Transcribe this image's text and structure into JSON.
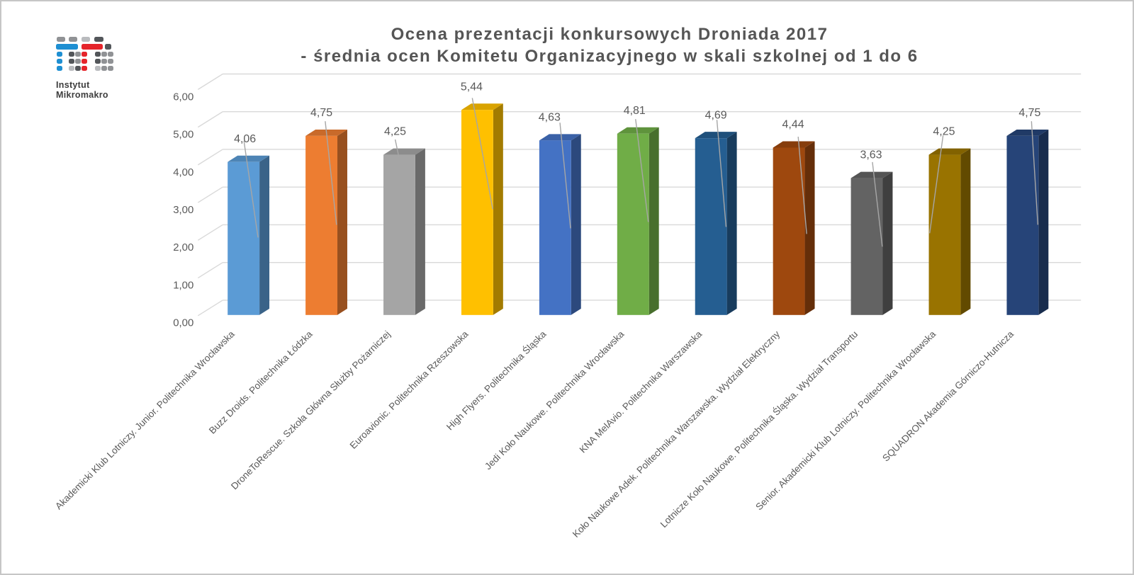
{
  "logo": {
    "line1": "Instytut",
    "line2": "Mikromakro",
    "colors": {
      "blue": "#1e8fd2",
      "red": "#e5242b",
      "gray": "#909295",
      "light": "#b9bbbe",
      "dark": "#53565a"
    }
  },
  "title": {
    "line1": "Ocena prezentacji konkursowych Droniada 2017",
    "line2": "- średnia ocen Komitetu Organizacyjnego w skali szkolnej od 1 do 6"
  },
  "chart_data": {
    "type": "bar",
    "style": "3d-column",
    "title": "Ocena prezentacji konkursowych Droniada 2017 - średnia ocen Komitetu Organizacyjnego w skali szkolnej od 1 do 6",
    "categories": [
      "Akademicki Klub Lotniczy. Junior. Politechnika Wrocławska",
      "Buzz Droids. Politechnika Łódzka",
      "DroneToRescue. Szkoła Główna Służby Pożarniczej",
      "Euroavionic. Politechnika Rzeszowska",
      "High Flyers. Politechnika Śląska",
      "Jedi Koło Naukowe. Politechnika Wrocławska",
      "KNA MelAvio. Politechnika Warszawska",
      "Koło Naukowe Adek. Politechnika Warszawska. Wydział Elektryczny",
      "Lotnicze Koło Naukowe. Politechnika Śląska. Wydział Transportu",
      "Senior. Akademicki Klub Lotniczy. Politechnika Wrocławska",
      "SQUADRON Akademia Górniczo-Hutnicza"
    ],
    "values": [
      4.06,
      4.75,
      4.25,
      5.44,
      4.63,
      4.81,
      4.69,
      4.44,
      3.63,
      4.25,
      4.75
    ],
    "value_labels": [
      "4,06",
      "4,75",
      "4,25",
      "5,44",
      "4,63",
      "4,81",
      "4,69",
      "4,44",
      "3,63",
      "4,25",
      "4,75"
    ],
    "bar_colors": [
      "#5B9BD5",
      "#ED7D31",
      "#A5A5A5",
      "#FFC000",
      "#4472C4",
      "#70AD47",
      "#255E91",
      "#9E480E",
      "#636363",
      "#997300",
      "#264478"
    ],
    "ylim": [
      0,
      6
    ],
    "ytick_labels": [
      "0,00",
      "1,00",
      "2,00",
      "3,00",
      "4,00",
      "5,00",
      "6,00"
    ],
    "grid": true,
    "legend": false,
    "text_color": "#595959",
    "gridline_color": "#d9d9d9",
    "leader_line_color": "#a6a6a6"
  }
}
